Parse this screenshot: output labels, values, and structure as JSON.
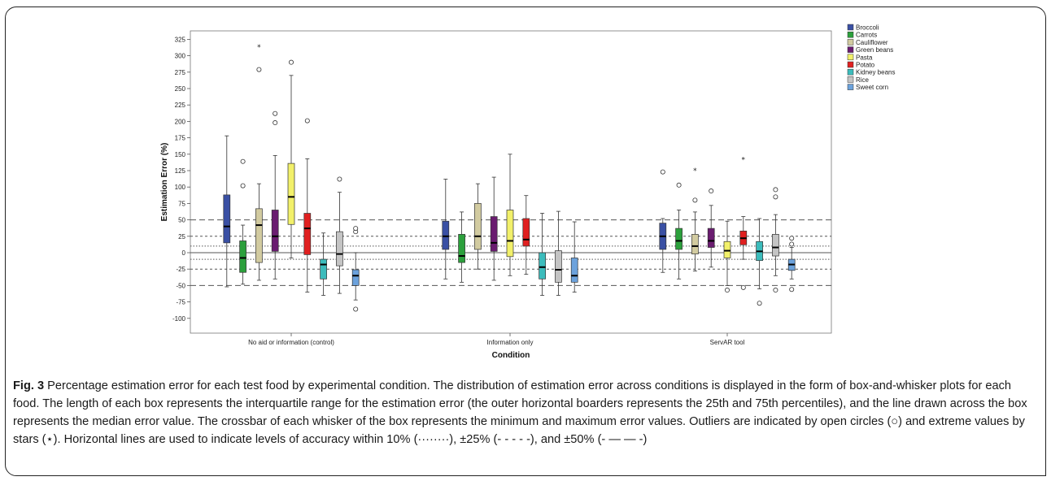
{
  "chart_data": {
    "type": "box",
    "xlabel": "Condition",
    "ylabel": "Estimation Error (%)",
    "ylim": [
      -110,
      335
    ],
    "yticks": [
      325,
      300,
      275,
      250,
      225,
      200,
      175,
      150,
      125,
      100,
      75,
      50,
      25,
      0,
      -25,
      -50,
      -75,
      -100
    ],
    "categories": [
      "No aid or information (control)",
      "Information only",
      "ServAR tool"
    ],
    "legend_position": "right",
    "reference_lines": [
      {
        "level": 10,
        "style": "dotted"
      },
      {
        "level": -10,
        "style": "dotted"
      },
      {
        "level": 25,
        "style": "short-dash"
      },
      {
        "level": -25,
        "style": "short-dash"
      },
      {
        "level": 50,
        "style": "long-dash"
      },
      {
        "level": -50,
        "style": "long-dash"
      },
      {
        "level": 0,
        "style": "solid"
      }
    ],
    "series": [
      {
        "name": "Broccoli",
        "color": "#3a50a4",
        "boxes": [
          {
            "min": -52,
            "q1": 15,
            "median": 40,
            "q3": 88,
            "max": 178,
            "outliers": [],
            "extremes": []
          },
          {
            "min": -40,
            "q1": 5,
            "median": 25,
            "q3": 48,
            "max": 112,
            "outliers": [],
            "extremes": []
          },
          {
            "min": -30,
            "q1": 5,
            "median": 25,
            "q3": 45,
            "max": 52,
            "outliers": [
              123
            ],
            "extremes": []
          }
        ]
      },
      {
        "name": "Carrots",
        "color": "#2ca03c",
        "boxes": [
          {
            "min": -48,
            "q1": -30,
            "median": -8,
            "q3": 18,
            "max": 42,
            "outliers": [
              102,
              139
            ],
            "extremes": []
          },
          {
            "min": -45,
            "q1": -15,
            "median": -5,
            "q3": 28,
            "max": 62,
            "outliers": [],
            "extremes": []
          },
          {
            "min": -40,
            "q1": 5,
            "median": 18,
            "q3": 37,
            "max": 65,
            "outliers": [
              103
            ],
            "extremes": []
          }
        ]
      },
      {
        "name": "Cauliflower",
        "color": "#d2cba0",
        "boxes": [
          {
            "min": -42,
            "q1": -15,
            "median": 42,
            "q3": 67,
            "max": 105,
            "outliers": [
              279
            ],
            "extremes": [
              313
            ]
          },
          {
            "min": -25,
            "q1": 5,
            "median": 25,
            "q3": 75,
            "max": 105,
            "outliers": [],
            "extremes": []
          },
          {
            "min": -28,
            "q1": -2,
            "median": 10,
            "q3": 28,
            "max": 62,
            "outliers": [
              80
            ],
            "extremes": [
              125
            ]
          }
        ]
      },
      {
        "name": "Green beans",
        "color": "#6a1c70",
        "boxes": [
          {
            "min": -40,
            "q1": 2,
            "median": 25,
            "q3": 65,
            "max": 148,
            "outliers": [
              198,
              212
            ],
            "extremes": []
          },
          {
            "min": -42,
            "q1": 2,
            "median": 15,
            "q3": 55,
            "max": 115,
            "outliers": [],
            "extremes": []
          },
          {
            "min": -22,
            "q1": 8,
            "median": 18,
            "q3": 37,
            "max": 72,
            "outliers": [
              94
            ],
            "extremes": []
          }
        ]
      },
      {
        "name": "Pasta",
        "color": "#f2f06a",
        "boxes": [
          {
            "min": -8,
            "q1": 43,
            "median": 85,
            "q3": 136,
            "max": 270,
            "outliers": [
              290
            ],
            "extremes": []
          },
          {
            "min": -35,
            "q1": -6,
            "median": 18,
            "q3": 65,
            "max": 150,
            "outliers": [],
            "extremes": []
          },
          {
            "min": -50,
            "q1": -8,
            "median": 3,
            "q3": 17,
            "max": 48,
            "outliers": [
              -57
            ],
            "extremes": []
          }
        ]
      },
      {
        "name": "Potato",
        "color": "#e02020",
        "boxes": [
          {
            "min": -60,
            "q1": -3,
            "median": 37,
            "q3": 60,
            "max": 143,
            "outliers": [
              201
            ],
            "extremes": []
          },
          {
            "min": -33,
            "q1": 10,
            "median": 20,
            "q3": 52,
            "max": 87,
            "outliers": [],
            "extremes": []
          },
          {
            "min": -10,
            "q1": 12,
            "median": 22,
            "q3": 33,
            "max": 55,
            "outliers": [
              -53
            ],
            "extremes": [
              142
            ]
          }
        ]
      },
      {
        "name": "Kidney beans",
        "color": "#3cbcbc",
        "boxes": [
          {
            "min": -65,
            "q1": -40,
            "median": -18,
            "q3": -10,
            "max": 30,
            "outliers": [],
            "extremes": []
          },
          {
            "min": -65,
            "q1": -40,
            "median": -22,
            "q3": 0,
            "max": 60,
            "outliers": [],
            "extremes": []
          },
          {
            "min": -55,
            "q1": -12,
            "median": 2,
            "q3": 17,
            "max": 52,
            "outliers": [
              -77
            ],
            "extremes": []
          }
        ]
      },
      {
        "name": "Rice",
        "color": "#c4c4c4",
        "boxes": [
          {
            "min": -62,
            "q1": -20,
            "median": -2,
            "q3": 32,
            "max": 92,
            "outliers": [
              112
            ],
            "extremes": []
          },
          {
            "min": -65,
            "q1": -45,
            "median": -26,
            "q3": 3,
            "max": 63,
            "outliers": [],
            "extremes": []
          },
          {
            "min": -35,
            "q1": -5,
            "median": 8,
            "q3": 28,
            "max": 58,
            "outliers": [
              -57,
              85,
              96
            ],
            "extremes": []
          }
        ]
      },
      {
        "name": "Sweet corn",
        "color": "#6ca2dc",
        "boxes": [
          {
            "min": -72,
            "q1": -50,
            "median": -35,
            "q3": -26,
            "max": 0,
            "outliers": [
              -86,
              32,
              37
            ],
            "extremes": []
          },
          {
            "min": -60,
            "q1": -45,
            "median": -35,
            "q3": -8,
            "max": 47,
            "outliers": [],
            "extremes": []
          },
          {
            "min": -40,
            "q1": -27,
            "median": -18,
            "q3": -10,
            "max": 8,
            "outliers": [
              -56,
              13,
              22
            ],
            "extremes": []
          }
        ]
      }
    ]
  },
  "caption": {
    "label": "Fig. 3",
    "text": "Percentage estimation error for each test food by experimental condition. The distribution of estimation error across conditions is displayed in the form of box-and-whisker plots for each food. The length of each box represents the interquartile range for the estimation error (the outer horizontal boarders represents the 25th and 75th percentiles), and the line drawn across the box represents the median error value. The crossbar of each whisker of the box represents the minimum and maximum error values. Outliers are indicated by open circles (○) and extreme values by stars (⋆). Horizontal lines are used to indicate levels of accuracy within 10% (········), ±25% (- - - - -), and ±50% (- — — -)"
  }
}
